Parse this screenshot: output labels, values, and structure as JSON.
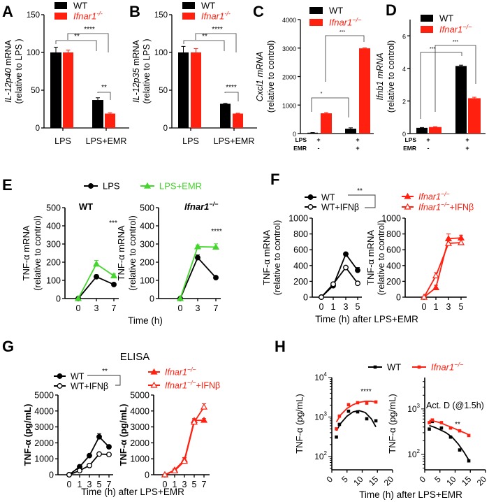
{
  "chart_data": [
    {
      "panel_label": "A",
      "type": "bar",
      "ylabel": {
        "italic": "IL-12p40",
        "plain": " mRNA",
        "line2": "(relative to LPS )"
      },
      "ylim": [
        0,
        150
      ],
      "yticks": [
        0,
        50,
        100,
        150
      ],
      "categories": [
        "LPS",
        "LPS+EMR"
      ],
      "series": [
        {
          "name": "WT",
          "italic": false,
          "color": "#000000",
          "values": [
            100,
            37
          ],
          "errors": [
            7,
            3
          ]
        },
        {
          "name": "Ifnar1",
          "name_sup": "-/-",
          "italic": true,
          "color": "#ff2010",
          "values": [
            100,
            19
          ],
          "errors": [
            3,
            1
          ]
        }
      ],
      "annotations": [
        "****",
        "**",
        "**"
      ]
    },
    {
      "panel_label": "B",
      "type": "bar",
      "ylabel": {
        "italic": "IL-12p35",
        "plain": " mRNA",
        "line2": "(relative to LPS )"
      },
      "ylim": [
        0,
        150
      ],
      "yticks": [
        0,
        50,
        100,
        150
      ],
      "categories": [
        "LPS",
        "LPS+EMR"
      ],
      "series": [
        {
          "name": "WT",
          "italic": false,
          "color": "#000000",
          "values": [
            100,
            32
          ],
          "errors": [
            8,
            0.5
          ]
        },
        {
          "name": "Ifnar1",
          "name_sup": "-/-",
          "italic": true,
          "color": "#ff2010",
          "values": [
            100,
            19
          ],
          "errors": [
            5,
            0.5
          ]
        }
      ],
      "annotations": [
        "****",
        "**",
        "****"
      ]
    },
    {
      "panel_label": "C",
      "type": "bar",
      "ylabel": {
        "italic": "Cxcl1 mRNA",
        "plain": "",
        "line2": "(relative to control)"
      },
      "ylim": [
        0,
        4000
      ],
      "yticks": [
        0,
        1000,
        2000,
        3000,
        4000
      ],
      "condition_rows": [
        {
          "label": "LPS",
          "values": [
            "+",
            "+"
          ]
        },
        {
          "label": "EMR",
          "values": [
            "-",
            "+"
          ]
        }
      ],
      "series": [
        {
          "name": "WT",
          "italic": false,
          "color": "#000000",
          "values": [
            30,
            170
          ],
          "errors": [
            5,
            30
          ]
        },
        {
          "name": "Ifnar1",
          "name_sup": "−/−",
          "italic": true,
          "color": "#ff2010",
          "values": [
            710,
            2990
          ],
          "errors": [
            25,
            15
          ]
        }
      ],
      "annotations": [
        "*",
        "***"
      ]
    },
    {
      "panel_label": "D",
      "type": "bar",
      "ylabel": {
        "italic": "Ifnb1 mRNA",
        "plain": "",
        "line2": "(relative to control)"
      },
      "ylim": [
        0,
        7
      ],
      "yticks": [
        0,
        2,
        4,
        6
      ],
      "condition_rows": [
        {
          "label": "LPS",
          "values": [
            "+",
            "+"
          ]
        },
        {
          "label": "EMR",
          "values": [
            "-",
            "+"
          ]
        }
      ],
      "series": [
        {
          "name": "WT",
          "italic": false,
          "color": "#000000",
          "values": [
            0.35,
            4.15
          ],
          "errors": [
            0.02,
            0.05
          ]
        },
        {
          "name": "Ifnar1",
          "name_sup": "−/−",
          "italic": true,
          "color": "#ff2010",
          "values": [
            0.4,
            2.17
          ],
          "errors": [
            0.02,
            0.06
          ]
        }
      ],
      "annotations": [
        "***",
        "***"
      ]
    },
    {
      "panel_label": "E",
      "type": "line",
      "legend": [
        {
          "name": "LPS",
          "color": "#000000",
          "marker": "circle"
        },
        {
          "name": "LPS+EMR",
          "color": "#44d62c",
          "marker": "triangle"
        }
      ],
      "ylabel": {
        "plain": "TNF-α mRNA",
        "line2": "(relative to control)"
      },
      "xlabel": "Time (h)",
      "x": [
        0,
        3,
        7
      ],
      "ylim": [
        0,
        500
      ],
      "yticks": [
        0,
        100,
        200,
        300,
        400,
        500
      ],
      "subplots": [
        {
          "title": "WT",
          "title_italic": false,
          "annotation": "***",
          "series": [
            {
              "legend": 0,
              "values": [
                0,
                120,
                77
              ],
              "errors": [
                0,
                10,
                5
              ]
            },
            {
              "legend": 1,
              "values": [
                0,
                190,
                125
              ],
              "errors": [
                0,
                20,
                10
              ]
            }
          ]
        },
        {
          "title": "Ifnar1",
          "title_sup": "−/−",
          "title_italic": true,
          "annotation": "****",
          "series": [
            {
              "legend": 0,
              "values": [
                0,
                225,
                115
              ],
              "errors": [
                0,
                15,
                5
              ]
            },
            {
              "legend": 1,
              "values": [
                0,
                285,
                283
              ],
              "errors": [
                0,
                10,
                18
              ]
            }
          ]
        }
      ]
    },
    {
      "panel_label": "F",
      "type": "line",
      "legend": [
        {
          "name": "WT",
          "color": "#000000",
          "marker": "circle"
        },
        {
          "name": "WT+IFNβ",
          "color": "#000000",
          "marker": "circle-open"
        },
        {
          "name": "Ifnar1",
          "name_sup": "−/−",
          "italic": true,
          "color": "#ff2010",
          "marker": "triangle"
        },
        {
          "name": "Ifnar1",
          "name_sup": "−/−",
          "suffix": "+IFNβ",
          "italic": true,
          "color": "#ff2010",
          "marker": "triangle-open"
        }
      ],
      "legend_annotation": "**",
      "ylabel": {
        "plain": "TNF-α mRNA",
        "line2": "(relative to control)"
      },
      "xlabel": "Time (h) after LPS+EMR",
      "x": [
        0,
        1,
        3,
        5
      ],
      "ylim": [
        0,
        1000
      ],
      "yticks": [
        0,
        200,
        400,
        600,
        800,
        1000
      ],
      "subplots": [
        {
          "series": [
            {
              "legend": 0,
              "values": [
                0,
                145,
                545,
                340
              ],
              "errors": [
                0,
                10,
                15,
                35
              ]
            },
            {
              "legend": 1,
              "values": [
                0,
                165,
                375,
                175
              ],
              "errors": [
                0,
                10,
                10,
                10
              ]
            }
          ]
        },
        {
          "series": [
            {
              "legend": 2,
              "values": [
                0,
                120,
                740,
                750
              ],
              "errors": [
                0,
                30,
                60,
                35
              ]
            },
            {
              "legend": 3,
              "values": [
                0,
                270,
                680,
                690
              ],
              "errors": [
                0,
                40,
                50,
                40
              ]
            }
          ]
        }
      ]
    },
    {
      "panel_label": "G",
      "type": "line",
      "title": "ELISA",
      "legend": [
        {
          "name": "WT",
          "color": "#000000",
          "marker": "circle"
        },
        {
          "name": "WT+IFNβ",
          "color": "#000000",
          "marker": "circle-open"
        },
        {
          "name": "Ifnar1",
          "name_sup": "−/−",
          "italic": true,
          "color": "#ff2010",
          "marker": "triangle"
        },
        {
          "name": "Ifnar1",
          "name_sup": "−/−",
          "suffix": "+IFNβ",
          "italic": true,
          "color": "#ff2010",
          "marker": "triangle-open"
        }
      ],
      "legend_annotation": "**",
      "ylabel": {
        "plain": "TNF-α (pg/mL)"
      },
      "xlabel": "Time (h) after LPS+EMR",
      "x": [
        0,
        1,
        3,
        5,
        7
      ],
      "ylim": [
        0,
        5000
      ],
      "yticks": [
        0,
        1000,
        2000,
        3000,
        4000,
        5000
      ],
      "subplots": [
        {
          "series": [
            {
              "legend": 0,
              "values": [
                0,
                500,
                1200,
                2380,
                1750
              ],
              "errors": [
                0,
                50,
                80,
                200,
                80
              ]
            },
            {
              "legend": 1,
              "values": [
                0,
                260,
                580,
                1300,
                1270
              ],
              "errors": [
                0,
                30,
                40,
                50,
                50
              ]
            }
          ]
        },
        {
          "series": [
            {
              "legend": 2,
              "values": [
                0,
                300,
                930,
                3400,
                3420
              ],
              "errors": [
                0,
                60,
                150,
                120,
                100
              ]
            },
            {
              "legend": 3,
              "values": [
                0,
                250,
                850,
                3300,
                4250
              ],
              "errors": [
                0,
                80,
                200,
                150,
                200
              ]
            }
          ]
        }
      ]
    },
    {
      "panel_label": "H",
      "type": "scatter",
      "yscale": "log",
      "legend": [
        {
          "name": "WT",
          "color": "#000000",
          "marker": "square"
        },
        {
          "name": "Ifnar1",
          "name_sup": "−/−",
          "italic": true,
          "color": "#ff2010",
          "marker": "square"
        }
      ],
      "ylabel": {
        "plain": "TNF-α (pg/mL)"
      },
      "xlabel": "Time (h) after LPS+EMR",
      "xlim": [
        0,
        20
      ],
      "xticks": [
        0,
        5,
        10,
        15,
        20
      ],
      "subplots": [
        {
          "annotation": "****",
          "yticks": [
            {
              "value": 100,
              "base": "10",
              "exp": "2"
            },
            {
              "value": 1000,
              "base": "10",
              "exp": "3"
            },
            {
              "value": 10000,
              "base": "10",
              "exp": "4"
            }
          ],
          "series": [
            {
              "legend": 0,
              "x": [
                1.5,
                2.5,
                5.5,
                8.5,
                11.5,
                14.5
              ],
              "y": [
                310,
                650,
                1400,
                1350,
                900,
                800
              ],
              "fit_x": [
                1.5,
                3,
                5,
                7,
                9,
                11,
                13,
                14.5
              ],
              "fit_y": [
                450,
                700,
                1050,
                1350,
                1450,
                1300,
                900,
                560
              ]
            },
            {
              "legend": 1,
              "x": [
                1.5,
                2.5,
                5.5,
                8.5,
                11.5,
                14.5
              ],
              "y": [
                500,
                1050,
                2050,
                2300,
                2250,
                2400
              ],
              "fit_x": [
                1.5,
                3,
                5,
                7,
                9,
                11,
                13,
                14.5
              ],
              "fit_y": [
                750,
                1150,
                1650,
                2050,
                2350,
                2500,
                2500,
                2400
              ]
            }
          ]
        },
        {
          "annotation": "**",
          "note": "Act. D (@1.5h)",
          "yticks": [
            {
              "value": 100,
              "base": "10",
              "exp": "2"
            },
            {
              "value": 1000,
              "base": "10",
              "exp": "3"
            }
          ],
          "series": [
            {
              "legend": 0,
              "x": [
                1.5,
                2.5,
                5.5,
                8.5,
                11.5,
                14.5
              ],
              "y": [
                360,
                530,
                380,
                240,
                125,
                72
              ],
              "fit_x": [
                1.5,
                3,
                5,
                7,
                9,
                11,
                13,
                14.5
              ],
              "fit_y": [
                430,
                400,
                350,
                300,
                240,
                170,
                110,
                75
              ]
            },
            {
              "legend": 1,
              "x": [
                1.5,
                2.5,
                5.5,
                8.5,
                11.5,
                14.5
              ],
              "y": [
                500,
                570,
                500,
                380,
                330,
                260
              ],
              "fit_x": [
                1.5,
                3,
                5,
                7,
                9,
                11,
                13,
                14.5
              ],
              "fit_y": [
                560,
                540,
                500,
                440,
                390,
                340,
                300,
                270
              ]
            }
          ]
        }
      ]
    }
  ]
}
